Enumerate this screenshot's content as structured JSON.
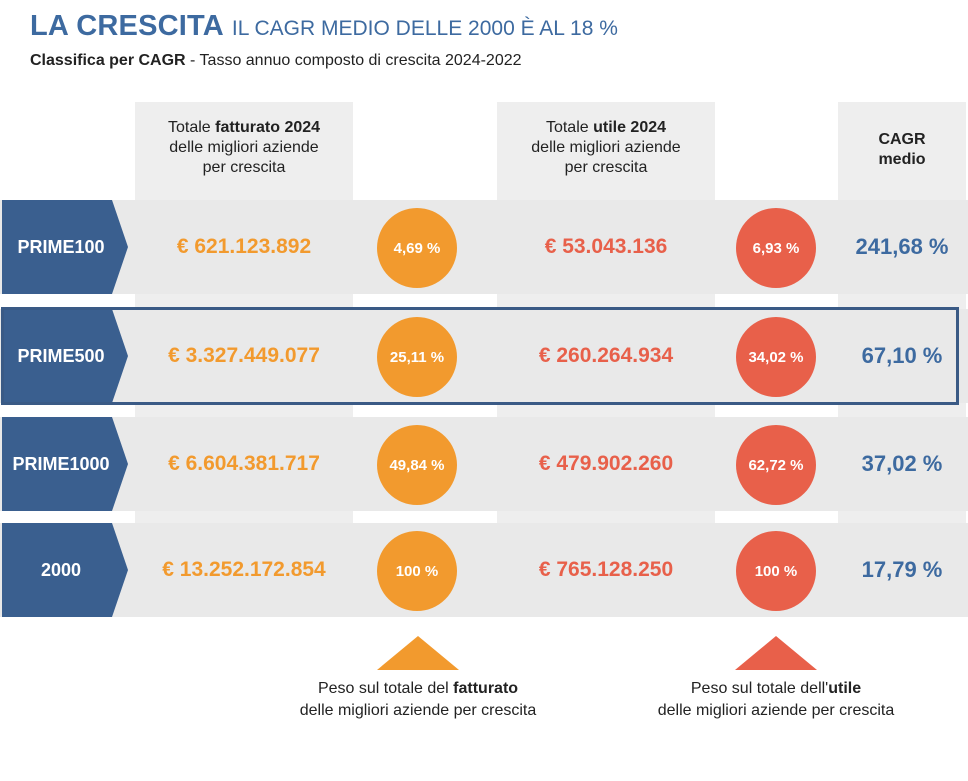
{
  "header": {
    "title_main": "LA CRESCITA",
    "title_rest": "IL CAGR MEDIO DELLE 2000 È AL 18 %",
    "subtitle_bold": "Classifica per CAGR",
    "subtitle_rest": " - Tasso annuo composto di crescita 2024-2022"
  },
  "columns": {
    "fatturato": {
      "pre": "Totale ",
      "bold": "fatturato 2024",
      "line2": "delle migliori aziende",
      "line3": "per crescita"
    },
    "utile": {
      "pre": "Totale ",
      "bold": "utile 2024",
      "line2": "delle migliori aziende",
      "line3": "per crescita"
    },
    "cagr": {
      "line1": "CAGR",
      "line2": "medio"
    }
  },
  "colors": {
    "orange": "#f29a2e",
    "red": "#e8604a",
    "blue": "#3d6aa0",
    "label_blue": "#3a5f8f"
  },
  "chart_data": {
    "type": "table",
    "title": "LA CRESCITA IL CAGR MEDIO DELLE 2000 È AL 18 %",
    "columns": [
      "Totale fatturato 2024",
      "Peso fatturato",
      "Totale utile 2024",
      "Peso utile",
      "CAGR medio"
    ],
    "rows": [
      {
        "line1": "PRIME",
        "line2": "100",
        "fatturato": "€ 621.123.892",
        "peso_fatturato": "4,69 %",
        "utile": "€ 53.043.136",
        "peso_utile": "6,93 %",
        "cagr": "241,68 %"
      },
      {
        "line1": "PRIME",
        "line2": "500",
        "fatturato": "€ 3.327.449.077",
        "peso_fatturato": "25,11 %",
        "utile": "€ 260.264.934",
        "peso_utile": "34,02 %",
        "cagr": "67,10 %"
      },
      {
        "line1": "PRIME",
        "line2": "1000",
        "fatturato": "€ 6.604.381.717",
        "peso_fatturato": "49,84 %",
        "utile": "€ 479.902.260",
        "peso_utile": "62,72 %",
        "cagr": "37,02 %"
      },
      {
        "line1": "2000",
        "line2": "",
        "fatturato": "€ 13.252.172.854",
        "peso_fatturato": "100 %",
        "utile": "€ 765.128.250",
        "peso_utile": "100 %",
        "cagr": "17,79 %"
      }
    ]
  },
  "footnotes": {
    "fatturato": {
      "pre": "Peso sul totale del ",
      "bold": "fatturato",
      "line2": "delle migliori aziende per crescita"
    },
    "utile": {
      "pre": "Peso sul totale dell'",
      "bold": "utile",
      "line2": "delle migliori aziende per crescita"
    }
  }
}
